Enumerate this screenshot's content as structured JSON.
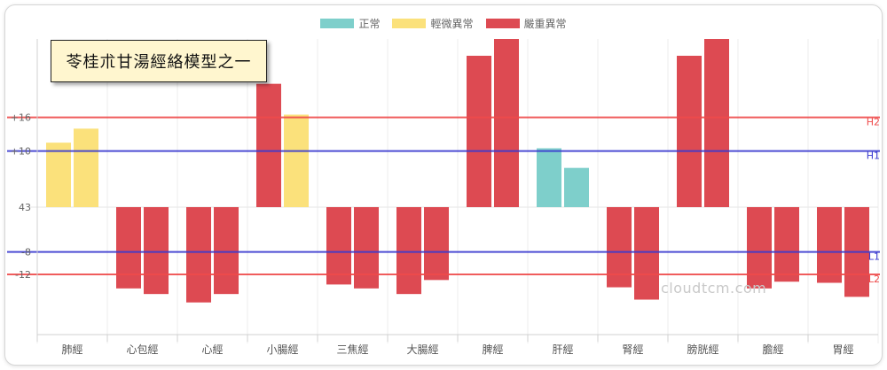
{
  "chart_data": {
    "type": "bar",
    "title": "苓桂朮甘湯經絡模型之一",
    "watermark": "cloudtcm.com",
    "categories": [
      "肺經",
      "心包經",
      "心經",
      "小腸經",
      "三焦經",
      "大腸經",
      "脾經",
      "肝經",
      "腎經",
      "膀胱經",
      "膽經",
      "胃經"
    ],
    "legend": [
      {
        "label": "正常",
        "color": "#7ecfcb"
      },
      {
        "label": "輕微異常",
        "color": "#fbe17b"
      },
      {
        "label": "嚴重異常",
        "color": "#dd4a52"
      }
    ],
    "baseline": 43,
    "baseline_label": "43",
    "y_ticks": [
      {
        "value": 16,
        "label": "+16"
      },
      {
        "value": 10,
        "label": "+10"
      },
      {
        "value": 0,
        "label": "43"
      },
      {
        "value": -8,
        "label": "-8"
      },
      {
        "value": -12,
        "label": "-12"
      }
    ],
    "ylim": [
      -24,
      30
    ],
    "reference_lines": [
      {
        "value": 16,
        "label": "H2",
        "color": "#ef4b4b"
      },
      {
        "value": 10,
        "label": "H1",
        "color": "#3a3ad0"
      },
      {
        "value": -8,
        "label": "L1",
        "color": "#3a3ad0"
      },
      {
        "value": -12,
        "label": "L2",
        "color": "#ef4b4b"
      }
    ],
    "bars": [
      [
        {
          "value": 11.5,
          "status": 1
        },
        {
          "value": 14,
          "status": 1
        }
      ],
      [
        {
          "value": -14.5,
          "status": 2
        },
        {
          "value": -15.5,
          "status": 2
        }
      ],
      [
        {
          "value": -17,
          "status": 2
        },
        {
          "value": -15.5,
          "status": 2
        }
      ],
      [
        {
          "value": 22,
          "status": 2
        },
        {
          "value": 16.5,
          "status": 1
        }
      ],
      [
        {
          "value": -13.8,
          "status": 2
        },
        {
          "value": -14.5,
          "status": 2
        }
      ],
      [
        {
          "value": -15.5,
          "status": 2
        },
        {
          "value": -13,
          "status": 2
        }
      ],
      [
        {
          "value": 27,
          "status": 2
        },
        {
          "value": 30,
          "status": 2
        }
      ],
      [
        {
          "value": 10.5,
          "status": 0
        },
        {
          "value": 7,
          "status": 0
        }
      ],
      [
        {
          "value": -14.3,
          "status": 2
        },
        {
          "value": -16.5,
          "status": 2
        }
      ],
      [
        {
          "value": 27,
          "status": 2
        },
        {
          "value": 30,
          "status": 2
        }
      ],
      [
        {
          "value": -14.5,
          "status": 2
        },
        {
          "value": -13.3,
          "status": 2
        }
      ],
      [
        {
          "value": -13.5,
          "status": 2
        },
        {
          "value": -16,
          "status": 2
        }
      ]
    ]
  }
}
